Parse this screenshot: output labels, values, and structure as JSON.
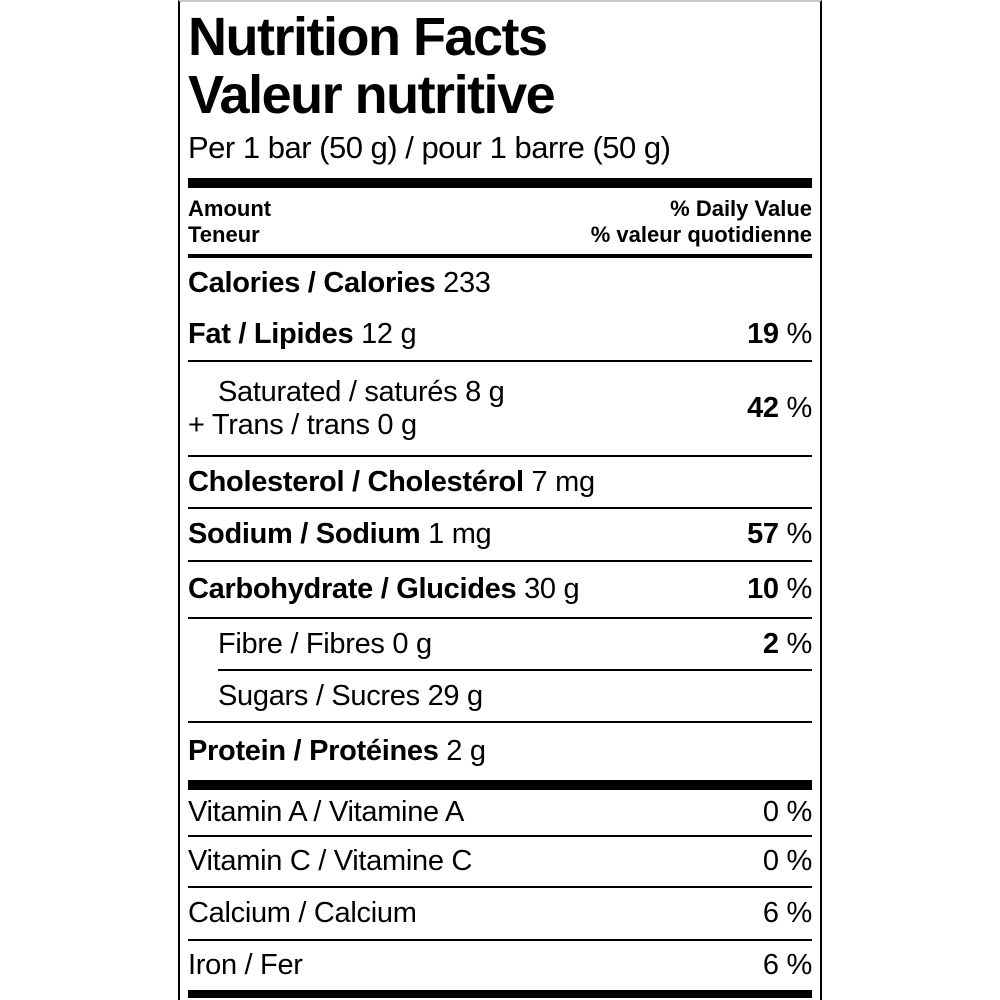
{
  "label": {
    "title_en": "Nutrition Facts",
    "title_fr": "Valeur nutritive",
    "serving": "Per 1 bar (50 g) / pour 1 barre (50 g)",
    "header": {
      "amount_en": "Amount",
      "amount_fr": "Teneur",
      "daily_value_en": "% Daily Value",
      "daily_value_fr": "% valeur quotidienne"
    },
    "percent_sign": "%",
    "rows": {
      "calories": {
        "name": "Calories / Calories",
        "value": "233"
      },
      "fat": {
        "name": "Fat / Lipides",
        "value": "12 g",
        "percent": "19"
      },
      "saturated": {
        "line1": "Saturated / saturés 8 g",
        "line2": "+ Trans / trans 0 g",
        "percent": "42"
      },
      "cholesterol": {
        "name": "Cholesterol / Cholestérol",
        "value": "7 mg"
      },
      "sodium": {
        "name": "Sodium / Sodium",
        "value": "1 mg",
        "percent": "57"
      },
      "carbohydrate": {
        "name": "Carbohydrate / Glucides",
        "value": "30 g",
        "percent": "10"
      },
      "fibre": {
        "name": "Fibre / Fibres 0 g",
        "percent": "2"
      },
      "sugars": {
        "name": "Sugars / Sucres 29 g"
      },
      "protein": {
        "name": "Protein / Protéines",
        "value": "2 g"
      },
      "vitamin_a": {
        "name": "Vitamin A / Vitamine A",
        "percent": "0"
      },
      "vitamin_c": {
        "name": "Vitamin C / Vitamine C",
        "percent": "0"
      },
      "calcium": {
        "name": "Calcium / Calcium",
        "percent": "6"
      },
      "iron": {
        "name": "Iron / Fer",
        "percent": "6"
      }
    },
    "colors": {
      "text": "#000000",
      "rule": "#000000",
      "background": "#ffffff"
    }
  }
}
